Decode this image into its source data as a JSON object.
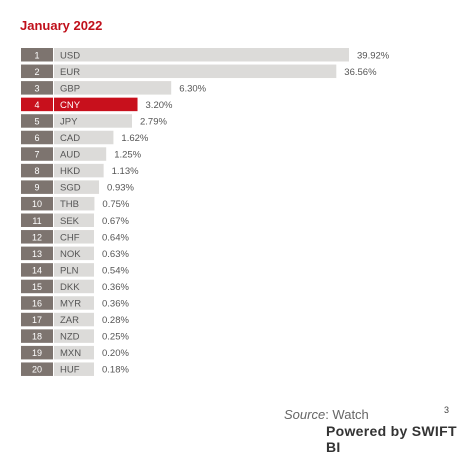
{
  "chart_data": {
    "type": "bar",
    "title": "January 2022",
    "ranks": [
      "1",
      "2",
      "3",
      "4",
      "5",
      "6",
      "7",
      "8",
      "9",
      "10",
      "11",
      "12",
      "13",
      "14",
      "15",
      "16",
      "17",
      "18",
      "19",
      "20"
    ],
    "categories": [
      "USD",
      "EUR",
      "GBP",
      "CNY",
      "JPY",
      "CAD",
      "AUD",
      "HKD",
      "SGD",
      "THB",
      "SEK",
      "CHF",
      "NOK",
      "PLN",
      "DKK",
      "MYR",
      "ZAR",
      "NZD",
      "MXN",
      "HUF"
    ],
    "values": [
      39.92,
      36.56,
      6.3,
      3.2,
      2.79,
      1.62,
      1.25,
      1.13,
      0.93,
      0.75,
      0.67,
      0.64,
      0.63,
      0.54,
      0.36,
      0.36,
      0.28,
      0.25,
      0.2,
      0.18
    ],
    "value_labels": [
      "39.92%",
      "36.56%",
      "6.30%",
      "3.20%",
      "2.79%",
      "1.62%",
      "1.25%",
      "1.13%",
      "0.93%",
      "0.75%",
      "0.67%",
      "0.64%",
      "0.63%",
      "0.54%",
      "0.36%",
      "0.36%",
      "0.28%",
      "0.25%",
      "0.20%",
      "0.18%"
    ],
    "highlight": "CNY",
    "colors": {
      "bar": "#dcdbd9",
      "highlight_bar": "#c8101c",
      "rank_box": "#7d746f",
      "highlight_rank_box": "#c8101c",
      "title": "#c0101b"
    }
  },
  "footer": {
    "source_label": "Source",
    "source_value": ": Watch",
    "page_number": "3",
    "powered_by": "Powered by SWIFT BI"
  }
}
